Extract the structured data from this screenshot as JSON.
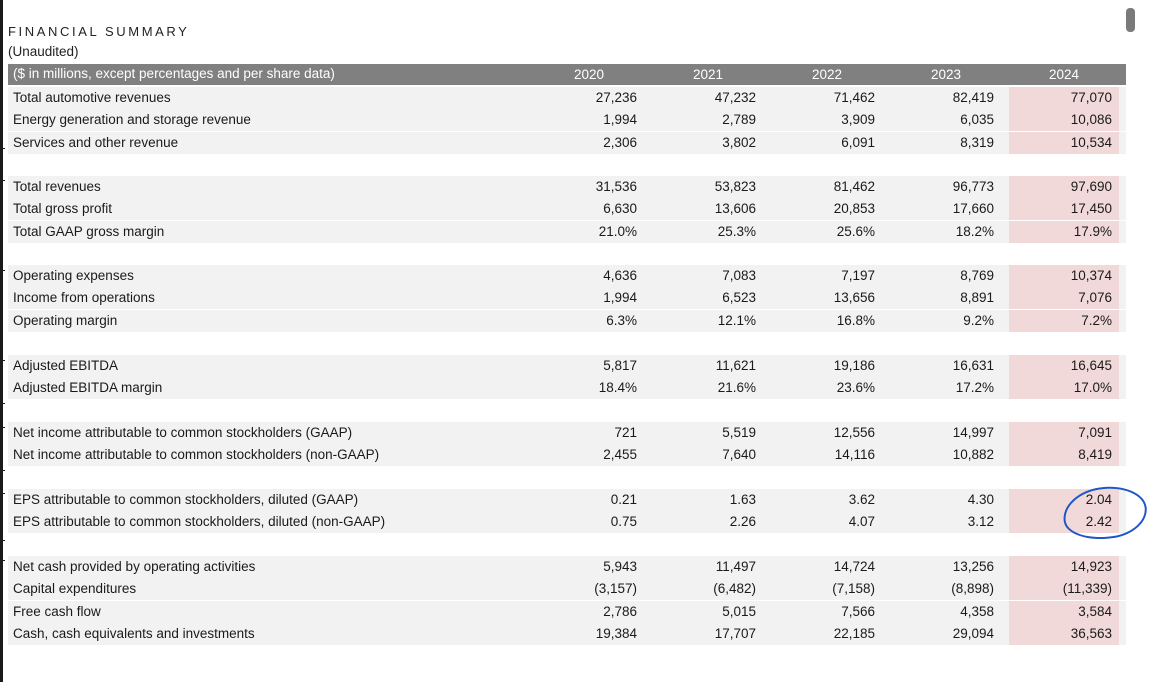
{
  "document": {
    "title": "FINANCIAL SUMMARY",
    "subtitle": "(Unaudited)",
    "header_label": "($ in millions, except percentages and per share data)",
    "years": [
      "2020",
      "2021",
      "2022",
      "2023",
      "2024"
    ],
    "highlight_color": "#f2d9d9",
    "header_color": "#808080",
    "annotation_color": "#1f57c9"
  },
  "groups": [
    {
      "rows": [
        {
          "label": "Total automotive revenues",
          "values": [
            "27,236",
            "47,232",
            "71,462",
            "82,419",
            "77,070"
          ]
        },
        {
          "label": "Energy generation and storage revenue",
          "values": [
            "1,994",
            "2,789",
            "3,909",
            "6,035",
            "10,086"
          ]
        },
        {
          "label": "Services and other revenue",
          "values": [
            "2,306",
            "3,802",
            "6,091",
            "8,319",
            "10,534"
          ]
        }
      ]
    },
    {
      "rows": [
        {
          "label": "Total revenues",
          "values": [
            "31,536",
            "53,823",
            "81,462",
            "96,773",
            "97,690"
          ]
        },
        {
          "label": "Total gross profit",
          "values": [
            "6,630",
            "13,606",
            "20,853",
            "17,660",
            "17,450"
          ]
        },
        {
          "label": "Total GAAP gross margin",
          "values": [
            "21.0%",
            "25.3%",
            "25.6%",
            "18.2%",
            "17.9%"
          ]
        }
      ]
    },
    {
      "rows": [
        {
          "label": "Operating expenses",
          "values": [
            "4,636",
            "7,083",
            "7,197",
            "8,769",
            "10,374"
          ]
        },
        {
          "label": "Income from operations",
          "values": [
            "1,994",
            "6,523",
            "13,656",
            "8,891",
            "7,076"
          ]
        },
        {
          "label": "Operating margin",
          "values": [
            "6.3%",
            "12.1%",
            "16.8%",
            "9.2%",
            "7.2%"
          ]
        }
      ]
    },
    {
      "rows": [
        {
          "label": "Adjusted EBITDA",
          "values": [
            "5,817",
            "11,621",
            "19,186",
            "16,631",
            "16,645"
          ]
        },
        {
          "label": "Adjusted EBITDA margin",
          "values": [
            "18.4%",
            "21.6%",
            "23.6%",
            "17.2%",
            "17.0%"
          ]
        }
      ]
    },
    {
      "rows": [
        {
          "label": "Net income attributable to common stockholders (GAAP)",
          "values": [
            "721",
            "5,519",
            "12,556",
            "14,997",
            "7,091"
          ]
        },
        {
          "label": "Net income attributable to common stockholders (non-GAAP)",
          "values": [
            "2,455",
            "7,640",
            "14,116",
            "10,882",
            "8,419"
          ]
        }
      ]
    },
    {
      "rows": [
        {
          "label": "EPS attributable to common stockholders, diluted (GAAP)",
          "values": [
            "0.21",
            "1.63",
            "3.62",
            "4.30",
            "2.04"
          ]
        },
        {
          "label": "EPS attributable to common stockholders, diluted (non-GAAP)",
          "values": [
            "0.75",
            "2.26",
            "4.07",
            "3.12",
            "2.42"
          ]
        }
      ]
    },
    {
      "rows": [
        {
          "label": "Net cash provided by operating activities",
          "values": [
            "5,943",
            "11,497",
            "14,724",
            "13,256",
            "14,923"
          ]
        },
        {
          "label": "Capital expenditures",
          "values": [
            "(3,157)",
            "(6,482)",
            "(7,158)",
            "(8,898)",
            "(11,339)"
          ]
        },
        {
          "label": "Free cash flow",
          "values": [
            "2,786",
            "5,015",
            "7,566",
            "4,358",
            "3,584"
          ]
        },
        {
          "label": "Cash, cash equivalents and investments",
          "values": [
            "19,384",
            "17,707",
            "22,185",
            "29,094",
            "36,563"
          ]
        }
      ]
    }
  ]
}
